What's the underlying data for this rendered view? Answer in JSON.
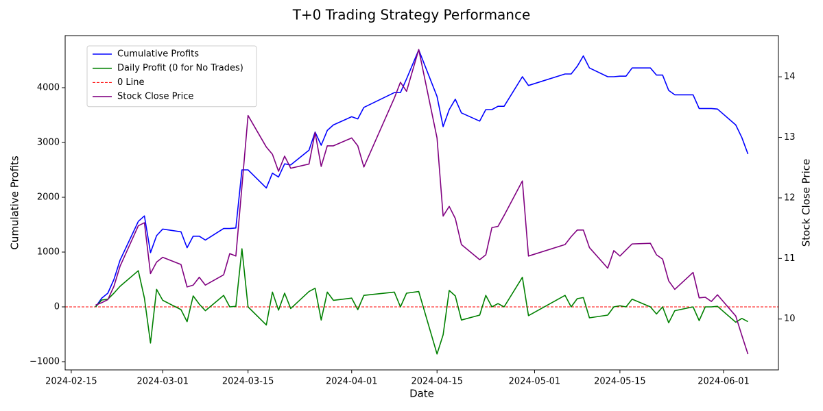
{
  "chart_data": {
    "type": "line",
    "title": "T+0 Trading Strategy Performance",
    "xlabel": "Date",
    "ylabel": "Cumulative Profits",
    "y2label": "Stock Close Price",
    "x": [
      "2024-02-19",
      "2024-02-20",
      "2024-02-21",
      "2024-02-22",
      "2024-02-23",
      "2024-02-26",
      "2024-02-27",
      "2024-02-28",
      "2024-02-29",
      "2024-03-01",
      "2024-03-04",
      "2024-03-05",
      "2024-03-06",
      "2024-03-07",
      "2024-03-08",
      "2024-03-11",
      "2024-03-12",
      "2024-03-13",
      "2024-03-14",
      "2024-03-15",
      "2024-03-18",
      "2024-03-19",
      "2024-03-20",
      "2024-03-21",
      "2024-03-22",
      "2024-03-25",
      "2024-03-26",
      "2024-03-27",
      "2024-03-28",
      "2024-03-29",
      "2024-04-01",
      "2024-04-02",
      "2024-04-03",
      "2024-04-08",
      "2024-04-09",
      "2024-04-10",
      "2024-04-12",
      "2024-04-15",
      "2024-04-16",
      "2024-04-17",
      "2024-04-18",
      "2024-04-19",
      "2024-04-22",
      "2024-04-23",
      "2024-04-24",
      "2024-04-25",
      "2024-04-26",
      "2024-04-29",
      "2024-04-30",
      "2024-05-06",
      "2024-05-07",
      "2024-05-08",
      "2024-05-09",
      "2024-05-10",
      "2024-05-13",
      "2024-05-14",
      "2024-05-15",
      "2024-05-16",
      "2024-05-17",
      "2024-05-20",
      "2024-05-21",
      "2024-05-22",
      "2024-05-23",
      "2024-05-24",
      "2024-05-27",
      "2024-05-28",
      "2024-05-29",
      "2024-05-30",
      "2024-05-31",
      "2024-06-03",
      "2024-06-04",
      "2024-06-05"
    ],
    "series": [
      {
        "name": "Cumulative Profits",
        "color": "#0000ff",
        "axis": "y",
        "values": [
          0,
          160,
          250,
          500,
          850,
          1560,
          1660,
          990,
          1300,
          1420,
          1370,
          1080,
          1290,
          1290,
          1220,
          1430,
          1430,
          1440,
          2500,
          2500,
          2170,
          2440,
          2370,
          2610,
          2590,
          2860,
          3190,
          2950,
          3220,
          3320,
          3470,
          3430,
          3640,
          3910,
          3910,
          4160,
          4690,
          3840,
          3290,
          3600,
          3790,
          3540,
          3390,
          3600,
          3600,
          3660,
          3660,
          4200,
          4040,
          4250,
          4250,
          4390,
          4580,
          4360,
          4200,
          4200,
          4210,
          4210,
          4360,
          4360,
          4230,
          4230,
          3950,
          3870,
          3870,
          3620,
          3620,
          3620,
          3610,
          3320,
          3090,
          2790
        ]
      },
      {
        "name": "Daily Profit (0 for No Trades)",
        "color": "#008000",
        "axis": "y",
        "values": [
          0,
          125,
          140,
          250,
          375,
          660,
          160,
          -660,
          320,
          120,
          -50,
          -270,
          200,
          50,
          -70,
          210,
          0,
          10,
          1060,
          0,
          -330,
          270,
          -60,
          250,
          -30,
          280,
          340,
          -240,
          270,
          120,
          160,
          -50,
          210,
          270,
          0,
          250,
          280,
          -860,
          -510,
          300,
          200,
          -240,
          -150,
          210,
          0,
          60,
          0,
          540,
          -160,
          210,
          0,
          150,
          170,
          -200,
          -150,
          0,
          20,
          0,
          140,
          0,
          -130,
          0,
          -290,
          -70,
          0,
          -250,
          0,
          0,
          10,
          -280,
          -210,
          -270
        ]
      },
      {
        "name": "Stock Close Price",
        "color": "#800080",
        "axis": "y2",
        "values": [
          10.23,
          10.27,
          10.32,
          10.54,
          10.87,
          11.54,
          11.59,
          10.75,
          10.94,
          11.02,
          10.9,
          10.53,
          10.56,
          10.69,
          10.56,
          10.73,
          11.08,
          11.04,
          12.19,
          13.36,
          12.84,
          12.72,
          12.44,
          12.69,
          12.49,
          12.56,
          13.08,
          12.52,
          12.86,
          12.86,
          12.99,
          12.86,
          12.51,
          13.65,
          13.91,
          13.76,
          14.45,
          12.99,
          11.7,
          11.86,
          11.66,
          11.23,
          10.98,
          11.06,
          11.51,
          11.53,
          11.71,
          12.28,
          11.04,
          11.23,
          11.36,
          11.47,
          11.47,
          11.18,
          10.84,
          11.13,
          11.04,
          11.14,
          11.24,
          11.25,
          11.06,
          10.99,
          10.63,
          10.49,
          10.77,
          10.35,
          10.36,
          10.29,
          10.4,
          10.05,
          9.73,
          9.42
        ]
      }
    ],
    "reference_lines": [
      {
        "name": "0 Line",
        "y": 0,
        "color": "#ff0000",
        "dashed": true
      }
    ],
    "xlim": [
      "2024-02-14",
      "2024-06-10"
    ],
    "xticks": [
      "2024-02-15",
      "2024-03-01",
      "2024-03-15",
      "2024-04-01",
      "2024-04-15",
      "2024-05-01",
      "2024-05-15",
      "2024-06-01"
    ],
    "ylim": [
      -1150,
      4950
    ],
    "yticks": [
      {
        "value": -1000,
        "label": "−1000"
      },
      0,
      1000,
      2000,
      3000,
      4000
    ],
    "y2lim": [
      9.16,
      14.68
    ],
    "y2ticks": [
      10,
      11,
      12,
      13,
      14
    ],
    "grid": false,
    "legend": "upper left"
  }
}
